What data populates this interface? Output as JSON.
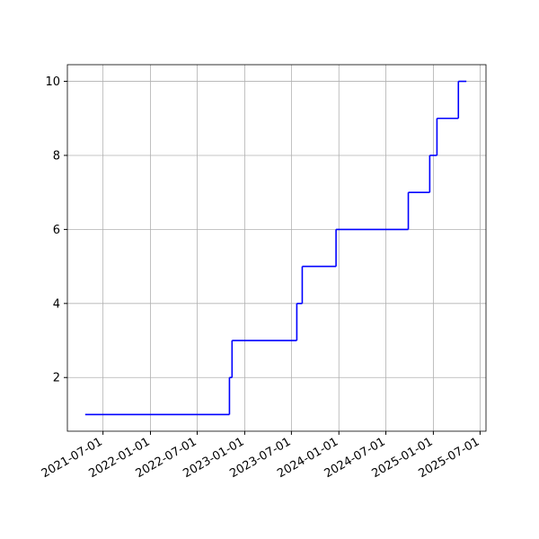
{
  "chart_data": {
    "type": "line",
    "step": "post",
    "x": [
      "2021-04-23",
      "2022-11-03",
      "2022-11-13",
      "2023-07-22",
      "2023-08-12",
      "2023-12-21",
      "2024-09-26",
      "2024-12-18",
      "2025-01-15",
      "2025-04-08",
      "2025-05-09"
    ],
    "series": [
      {
        "color": "#0000ff",
        "values": [
          1,
          2,
          3,
          4,
          5,
          6,
          7,
          8,
          9,
          10,
          10
        ]
      }
    ],
    "xlim": [
      "2021-02-13",
      "2025-07-24"
    ],
    "xticks": [
      "2021-07-01",
      "2022-01-01",
      "2022-07-01",
      "2023-01-01",
      "2023-07-01",
      "2024-01-01",
      "2024-07-01",
      "2025-01-01",
      "2025-07-01"
    ],
    "ylim": [
      0.55,
      10.45
    ],
    "yticks": [
      2,
      4,
      6,
      8,
      10
    ],
    "grid": true
  }
}
